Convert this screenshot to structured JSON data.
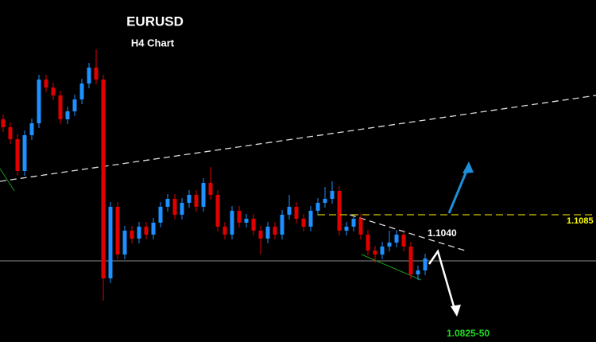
{
  "chart_data": {
    "type": "candlestick",
    "title": "EURUSD",
    "subtitle": "H4 Chart",
    "up_color": "#1e90ff",
    "down_color": "#e00000",
    "ylim": [
      1.0925,
      1.1355
    ],
    "resistance": 1.1085,
    "trendline_level": {
      "value": 1.104,
      "label": "1.1040"
    },
    "target": "1.0825-50",
    "open": [
      1.1205,
      1.1195,
      1.118,
      1.114,
      1.1185,
      1.12,
      1.1255,
      1.1245,
      1.1235,
      1.1205,
      1.1215,
      1.123,
      1.125,
      1.127,
      1.1255,
      1.1005,
      1.1095,
      1.1035,
      1.1065,
      1.1055,
      1.107,
      1.106,
      1.1075,
      1.1095,
      1.1105,
      1.1085,
      1.11,
      1.111,
      1.1095,
      1.1125,
      1.111,
      1.107,
      1.106,
      1.109,
      1.1075,
      1.108,
      1.1065,
      1.1055,
      1.107,
      1.106,
      1.1085,
      1.1095,
      1.108,
      1.107,
      1.109,
      1.11,
      1.1105,
      1.1115,
      1.1065,
      1.107,
      1.108,
      1.106,
      1.104,
      1.1035,
      1.1045,
      1.105,
      1.106,
      1.1045,
      1.101,
      1.1015
    ],
    "high": [
      1.1211,
      1.1201,
      1.1186,
      1.1191,
      1.1206,
      1.1261,
      1.1261,
      1.1251,
      1.1241,
      1.1221,
      1.1236,
      1.1256,
      1.1276,
      1.1293,
      1.1261,
      1.1101,
      1.1101,
      1.1071,
      1.1071,
      1.1076,
      1.1076,
      1.1081,
      1.1101,
      1.1111,
      1.1111,
      1.1106,
      1.1116,
      1.1116,
      1.1131,
      1.1145,
      1.1116,
      1.1076,
      1.1096,
      1.1096,
      1.1086,
      1.1086,
      1.1071,
      1.1076,
      1.1076,
      1.1091,
      1.111,
      1.1101,
      1.1086,
      1.1096,
      1.1106,
      1.112,
      1.1127,
      1.1121,
      1.1076,
      1.1086,
      1.1086,
      1.1066,
      1.1046,
      1.1051,
      1.1065,
      1.1066,
      1.1066,
      1.1051,
      1.1021,
      1.1036
    ],
    "low": [
      1.1189,
      1.1174,
      1.1134,
      1.1134,
      1.1179,
      1.1194,
      1.1239,
      1.1229,
      1.1199,
      1.1199,
      1.1209,
      1.1224,
      1.1244,
      1.1249,
      1.0977,
      1.0999,
      1.1029,
      1.1029,
      1.1049,
      1.1049,
      1.1054,
      1.1054,
      1.1069,
      1.1089,
      1.1079,
      1.1079,
      1.1094,
      1.1089,
      1.1089,
      1.1104,
      1.1064,
      1.1054,
      1.1054,
      1.1069,
      1.1069,
      1.1059,
      1.1035,
      1.1049,
      1.1054,
      1.1054,
      1.1079,
      1.1074,
      1.1064,
      1.1064,
      1.1084,
      1.1094,
      1.1099,
      1.1059,
      1.1059,
      1.1064,
      1.1054,
      1.1034,
      1.1025,
      1.1029,
      1.1039,
      1.1044,
      1.1039,
      1.1004,
      1.1003,
      1.1009
    ],
    "close": [
      1.1195,
      1.118,
      1.114,
      1.1185,
      1.12,
      1.1255,
      1.1245,
      1.1235,
      1.1205,
      1.1215,
      1.123,
      1.125,
      1.127,
      1.1255,
      1.1005,
      1.1095,
      1.1035,
      1.1065,
      1.1055,
      1.107,
      1.106,
      1.1075,
      1.1095,
      1.1105,
      1.1085,
      1.11,
      1.111,
      1.1095,
      1.1125,
      1.111,
      1.107,
      1.106,
      1.109,
      1.1075,
      1.108,
      1.1065,
      1.1055,
      1.107,
      1.106,
      1.1085,
      1.1095,
      1.108,
      1.107,
      1.109,
      1.11,
      1.1105,
      1.1115,
      1.1065,
      1.107,
      1.108,
      1.106,
      1.104,
      1.1035,
      1.1045,
      1.105,
      1.106,
      1.1045,
      1.101,
      1.1015,
      1.103
    ]
  }
}
